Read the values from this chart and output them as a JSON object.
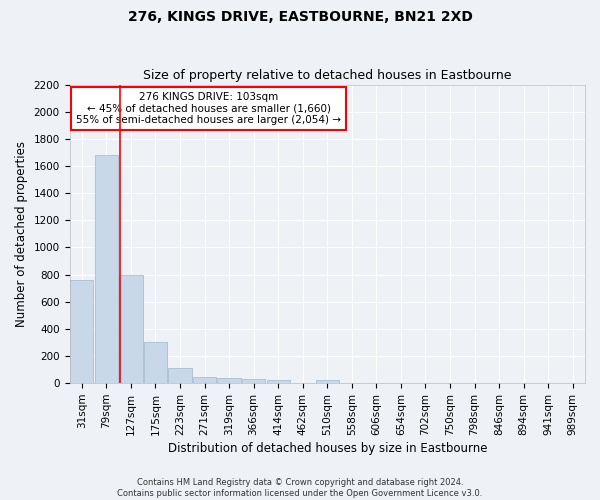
{
  "title": "276, KINGS DRIVE, EASTBOURNE, BN21 2XD",
  "subtitle": "Size of property relative to detached houses in Eastbourne",
  "xlabel": "Distribution of detached houses by size in Eastbourne",
  "ylabel": "Number of detached properties",
  "bar_labels": [
    "31sqm",
    "79sqm",
    "127sqm",
    "175sqm",
    "223sqm",
    "271sqm",
    "319sqm",
    "366sqm",
    "414sqm",
    "462sqm",
    "510sqm",
    "558sqm",
    "606sqm",
    "654sqm",
    "702sqm",
    "750sqm",
    "798sqm",
    "846sqm",
    "894sqm",
    "941sqm",
    "989sqm"
  ],
  "bar_values": [
    760,
    1680,
    800,
    300,
    110,
    45,
    35,
    28,
    25,
    0,
    25,
    0,
    0,
    0,
    0,
    0,
    0,
    0,
    0,
    0,
    0
  ],
  "bar_color": "#c8d8e8",
  "bar_edgecolor": "#a0b8d0",
  "ylim": [
    0,
    2200
  ],
  "yticks": [
    0,
    200,
    400,
    600,
    800,
    1000,
    1200,
    1400,
    1600,
    1800,
    2000,
    2200
  ],
  "red_line_x": 1.55,
  "annotation_line1": "276 KINGS DRIVE: 103sqm",
  "annotation_line2": "← 45% of detached houses are smaller (1,660)",
  "annotation_line3": "55% of semi-detached houses are larger (2,054) →",
  "footer_line1": "Contains HM Land Registry data © Crown copyright and database right 2024.",
  "footer_line2": "Contains public sector information licensed under the Open Government Licence v3.0.",
  "background_color": "#eef2f7",
  "grid_color": "#ffffff",
  "title_fontsize": 10,
  "subtitle_fontsize": 9,
  "axis_label_fontsize": 8.5,
  "tick_fontsize": 7.5,
  "annotation_fontsize": 7.5,
  "footer_fontsize": 6
}
